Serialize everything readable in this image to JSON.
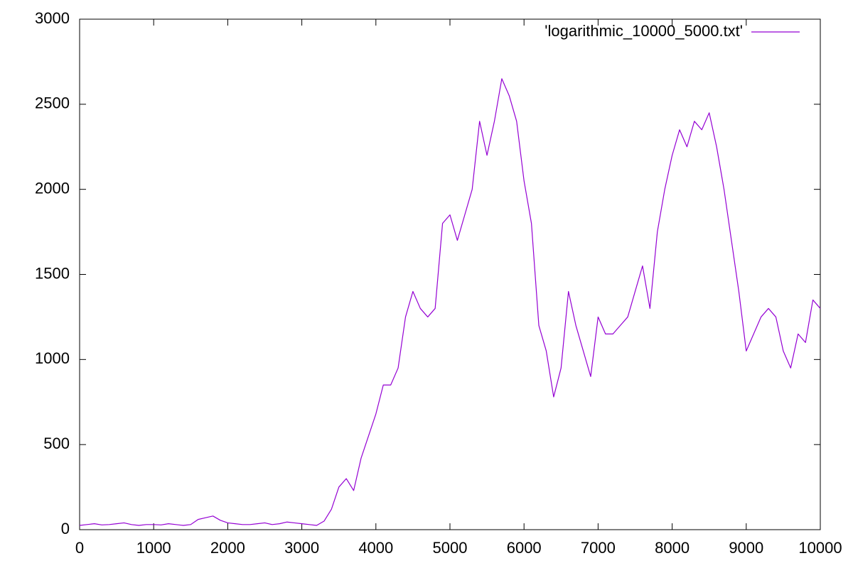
{
  "chart_data": {
    "type": "line",
    "x": [
      0,
      100,
      200,
      300,
      400,
      500,
      600,
      700,
      800,
      900,
      1000,
      1100,
      1200,
      1300,
      1400,
      1500,
      1600,
      1700,
      1800,
      1900,
      2000,
      2100,
      2200,
      2300,
      2400,
      2500,
      2600,
      2700,
      2800,
      2900,
      3000,
      3100,
      3200,
      3300,
      3400,
      3500,
      3600,
      3700,
      3800,
      3900,
      4000,
      4100,
      4200,
      4300,
      4400,
      4500,
      4600,
      4700,
      4800,
      4900,
      5000,
      5100,
      5200,
      5300,
      5400,
      5500,
      5600,
      5700,
      5800,
      5900,
      6000,
      6100,
      6200,
      6300,
      6400,
      6500,
      6600,
      6700,
      6800,
      6900,
      7000,
      7100,
      7200,
      7300,
      7400,
      7500,
      7600,
      7700,
      7800,
      7900,
      8000,
      8100,
      8200,
      8300,
      8400,
      8500,
      8600,
      8700,
      8800,
      8900,
      9000,
      9100,
      9200,
      9300,
      9400,
      9500,
      9600,
      9700,
      9800,
      9900,
      10000
    ],
    "series": [
      {
        "name": "'logarithmic_10000_5000.txt'",
        "color": "#9400d3",
        "values": [
          25,
          30,
          35,
          28,
          30,
          35,
          40,
          30,
          25,
          30,
          30,
          28,
          35,
          30,
          25,
          30,
          60,
          70,
          80,
          55,
          40,
          35,
          30,
          30,
          35,
          40,
          30,
          35,
          45,
          40,
          35,
          30,
          25,
          50,
          120,
          250,
          300,
          230,
          420,
          550,
          680,
          850,
          850,
          950,
          1250,
          1400,
          1300,
          1250,
          1300,
          1800,
          1850,
          1700,
          1850,
          2000,
          2400,
          2200,
          2400,
          2650,
          2550,
          2400,
          2050,
          1800,
          1200,
          1050,
          780,
          950,
          1400,
          1200,
          1050,
          900,
          1250,
          1150,
          1150,
          1200,
          1250,
          1400,
          1550,
          1300,
          1750,
          2000,
          2200,
          2350,
          2250,
          2400,
          2350,
          2450,
          2250,
          2000,
          1700,
          1400,
          1050,
          1150,
          1250,
          1300,
          1250,
          1050,
          950,
          1150,
          1100,
          1350,
          1300
        ]
      }
    ],
    "xlim": [
      0,
      10000
    ],
    "ylim": [
      0,
      3000
    ],
    "xticks": [
      0,
      1000,
      2000,
      3000,
      4000,
      5000,
      6000,
      7000,
      8000,
      9000,
      10000
    ],
    "yticks": [
      0,
      500,
      1000,
      1500,
      2000,
      2500,
      3000
    ],
    "legend": "upper-right"
  }
}
